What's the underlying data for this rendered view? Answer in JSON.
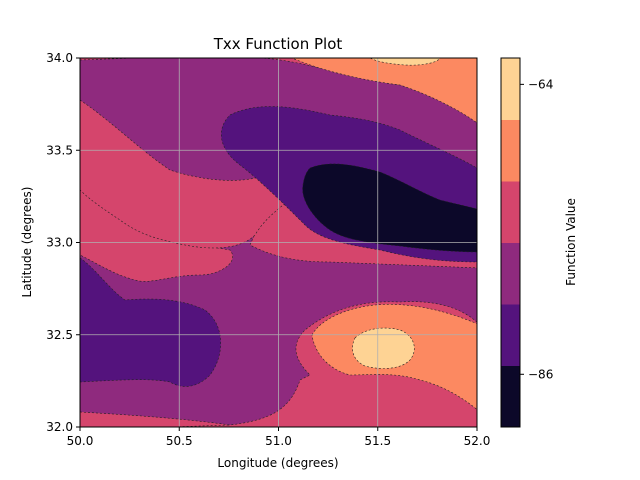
{
  "chart_data": {
    "type": "contour",
    "title": "Txx Function Plot",
    "xlabel": "Longitude (degrees)",
    "ylabel": "Latitude (degrees)",
    "xlim": [
      50.0,
      52.0
    ],
    "ylim": [
      32.0,
      34.0
    ],
    "xticks": [
      "50.0",
      "50.5",
      "51.0",
      "51.5",
      "52.0"
    ],
    "yticks": [
      "32.0",
      "32.5",
      "33.0",
      "33.5",
      "34.0"
    ],
    "grid": true,
    "colormap": "magma",
    "colorbar": {
      "label": "Function Value",
      "ticks": [
        "−64",
        "−86"
      ],
      "tick_values": [
        -64,
        -86
      ],
      "range": [
        -90,
        -62
      ],
      "level_colors": [
        "#0c0829",
        "#54137d",
        "#8f2a7e",
        "#d5456c",
        "#fc8961",
        "#fed394"
      ]
    },
    "regions": [
      {
        "level": "mid-low",
        "description": "purple band"
      },
      {
        "level": "low",
        "centers": [
          [
            51.3,
            33.4
          ],
          [
            50.4,
            32.5
          ]
        ]
      },
      {
        "level": "lowest",
        "centers": [
          [
            51.7,
            33.2
          ]
        ]
      },
      {
        "level": "high",
        "centers": [
          [
            51.6,
            32.4
          ]
        ]
      },
      {
        "level": "highest",
        "centers": [
          [
            51.55,
            32.42
          ],
          [
            51.7,
            34.0
          ]
        ]
      }
    ]
  }
}
